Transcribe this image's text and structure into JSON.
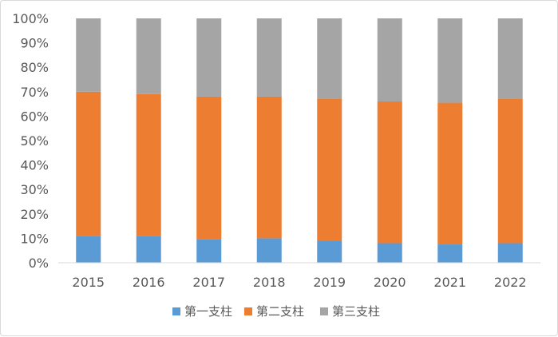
{
  "chart_data": {
    "type": "bar",
    "stacked": true,
    "percent": true,
    "categories": [
      "2015",
      "2016",
      "2017",
      "2018",
      "2019",
      "2020",
      "2021",
      "2022"
    ],
    "series": [
      {
        "name": "第一支柱",
        "color": "#5b9bd5",
        "values": [
          11,
          11,
          9.5,
          10,
          9,
          8,
          7.5,
          8
        ]
      },
      {
        "name": "第二支柱",
        "color": "#ed7d31",
        "values": [
          59,
          58,
          58.5,
          58,
          58,
          58,
          58,
          59
        ]
      },
      {
        "name": "第三支柱",
        "color": "#a5a5a5",
        "values": [
          30,
          31,
          32,
          32,
          33,
          34,
          34.5,
          33
        ]
      }
    ],
    "y_ticks": [
      "0%",
      "10%",
      "20%",
      "30%",
      "40%",
      "50%",
      "60%",
      "70%",
      "80%",
      "90%",
      "100%"
    ],
    "ylim": [
      0,
      100
    ],
    "grid": false,
    "legend_position": "bottom"
  }
}
